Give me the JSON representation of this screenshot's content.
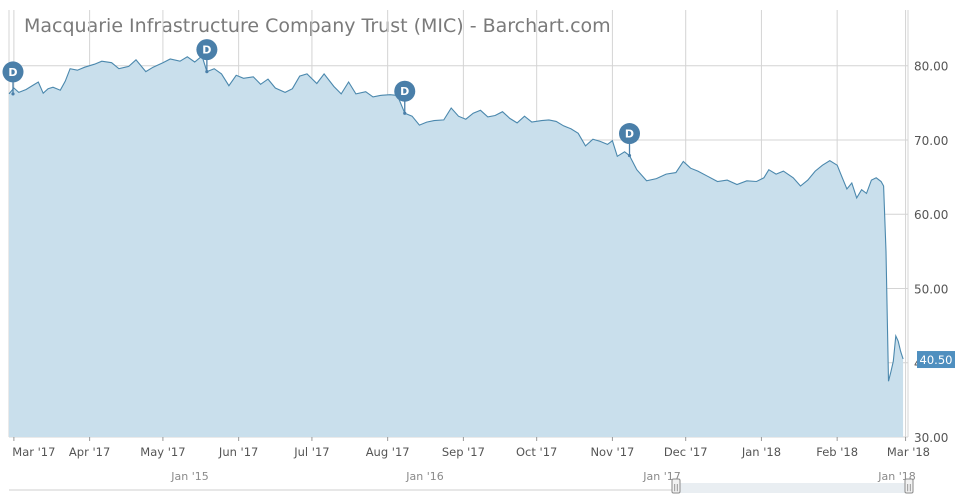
{
  "colors": {
    "area_fill": "#c9dfec",
    "line": "#4b88ad",
    "grid": "#d4d4d4",
    "axis_text": "#555555",
    "navigator_text": "#8a8a8a",
    "marker": "#4a7fa9",
    "price_badge": "#4f8fbf"
  },
  "chart_data": {
    "type": "area",
    "title": "Macquarie Infrastructure Company Trust (MIC) - Barchart.com",
    "y_ticks": [
      "80.00",
      "70.00",
      "60.00",
      "50.00",
      "40.00",
      "30.00"
    ],
    "y_tick_values": [
      80,
      70,
      60,
      50,
      40,
      30
    ],
    "ylim": [
      30,
      87.5
    ],
    "x_ticks": [
      "Mar '17",
      "Apr '17",
      "May '17",
      "Jun '17",
      "Jul '17",
      "Aug '17",
      "Sep '17",
      "Oct '17",
      "Nov '17",
      "Dec '17",
      "Jan '18",
      "Feb '18",
      "Mar '18"
    ],
    "x_tick_dates": [
      "2017-03-01",
      "2017-04-01",
      "2017-05-01",
      "2017-06-01",
      "2017-07-01",
      "2017-08-01",
      "2017-09-01",
      "2017-10-01",
      "2017-11-01",
      "2017-12-01",
      "2018-01-01",
      "2018-02-01",
      "2018-03-01"
    ],
    "xlim": [
      "2017-02-27",
      "2018-03-02"
    ],
    "last_price_label": "40.50",
    "last_price": 40.5,
    "grid": true,
    "series": [
      {
        "points": [
          [
            "2017-02-27",
            76.2
          ],
          [
            "2017-03-01",
            77.0
          ],
          [
            "2017-03-03",
            76.4
          ],
          [
            "2017-03-06",
            76.8
          ],
          [
            "2017-03-09",
            77.4
          ],
          [
            "2017-03-11",
            77.8
          ],
          [
            "2017-03-13",
            76.3
          ],
          [
            "2017-03-15",
            76.9
          ],
          [
            "2017-03-17",
            77.1
          ],
          [
            "2017-03-20",
            76.7
          ],
          [
            "2017-03-22",
            77.9
          ],
          [
            "2017-03-24",
            79.6
          ],
          [
            "2017-03-27",
            79.4
          ],
          [
            "2017-03-30",
            79.8
          ],
          [
            "2017-04-03",
            80.2
          ],
          [
            "2017-04-06",
            80.6
          ],
          [
            "2017-04-10",
            80.4
          ],
          [
            "2017-04-13",
            79.6
          ],
          [
            "2017-04-17",
            79.9
          ],
          [
            "2017-04-20",
            80.8
          ],
          [
            "2017-04-24",
            79.2
          ],
          [
            "2017-04-27",
            79.8
          ],
          [
            "2017-05-01",
            80.4
          ],
          [
            "2017-05-04",
            80.9
          ],
          [
            "2017-05-08",
            80.6
          ],
          [
            "2017-05-11",
            81.2
          ],
          [
            "2017-05-14",
            80.5
          ],
          [
            "2017-05-17",
            81.3
          ],
          [
            "2017-05-19",
            79.2
          ],
          [
            "2017-05-22",
            79.6
          ],
          [
            "2017-05-25",
            78.9
          ],
          [
            "2017-05-28",
            77.3
          ],
          [
            "2017-05-31",
            78.7
          ],
          [
            "2017-06-03",
            78.3
          ],
          [
            "2017-06-07",
            78.5
          ],
          [
            "2017-06-10",
            77.5
          ],
          [
            "2017-06-13",
            78.2
          ],
          [
            "2017-06-16",
            77.0
          ],
          [
            "2017-06-20",
            76.4
          ],
          [
            "2017-06-23",
            76.9
          ],
          [
            "2017-06-26",
            78.6
          ],
          [
            "2017-06-29",
            78.9
          ],
          [
            "2017-07-03",
            77.6
          ],
          [
            "2017-07-06",
            78.9
          ],
          [
            "2017-07-10",
            77.2
          ],
          [
            "2017-07-13",
            76.2
          ],
          [
            "2017-07-16",
            77.8
          ],
          [
            "2017-07-19",
            76.2
          ],
          [
            "2017-07-23",
            76.5
          ],
          [
            "2017-07-26",
            75.8
          ],
          [
            "2017-07-29",
            76.0
          ],
          [
            "2017-08-02",
            76.1
          ],
          [
            "2017-08-05",
            76.0
          ],
          [
            "2017-08-08",
            73.6
          ],
          [
            "2017-08-11",
            73.2
          ],
          [
            "2017-08-14",
            72.0
          ],
          [
            "2017-08-17",
            72.4
          ],
          [
            "2017-08-20",
            72.6
          ],
          [
            "2017-08-24",
            72.7
          ],
          [
            "2017-08-27",
            74.3
          ],
          [
            "2017-08-30",
            73.2
          ],
          [
            "2017-09-02",
            72.8
          ],
          [
            "2017-09-05",
            73.6
          ],
          [
            "2017-09-08",
            74.0
          ],
          [
            "2017-09-11",
            73.1
          ],
          [
            "2017-09-14",
            73.3
          ],
          [
            "2017-09-17",
            73.8
          ],
          [
            "2017-09-20",
            72.9
          ],
          [
            "2017-09-23",
            72.3
          ],
          [
            "2017-09-26",
            73.2
          ],
          [
            "2017-09-29",
            72.4
          ],
          [
            "2017-10-03",
            72.6
          ],
          [
            "2017-10-06",
            72.7
          ],
          [
            "2017-10-09",
            72.5
          ],
          [
            "2017-10-12",
            71.9
          ],
          [
            "2017-10-15",
            71.5
          ],
          [
            "2017-10-18",
            70.9
          ],
          [
            "2017-10-21",
            69.2
          ],
          [
            "2017-10-24",
            70.1
          ],
          [
            "2017-10-27",
            69.8
          ],
          [
            "2017-10-30",
            69.4
          ],
          [
            "2017-11-01",
            69.9
          ],
          [
            "2017-11-03",
            67.8
          ],
          [
            "2017-11-06",
            68.4
          ],
          [
            "2017-11-08",
            67.9
          ],
          [
            "2017-11-11",
            66.0
          ],
          [
            "2017-11-15",
            64.5
          ],
          [
            "2017-11-19",
            64.8
          ],
          [
            "2017-11-23",
            65.4
          ],
          [
            "2017-11-27",
            65.6
          ],
          [
            "2017-11-30",
            67.1
          ],
          [
            "2017-12-03",
            66.2
          ],
          [
            "2017-12-06",
            65.8
          ],
          [
            "2017-12-10",
            65.1
          ],
          [
            "2017-12-14",
            64.4
          ],
          [
            "2017-12-18",
            64.6
          ],
          [
            "2017-12-22",
            64.0
          ],
          [
            "2017-12-26",
            64.5
          ],
          [
            "2017-12-30",
            64.4
          ],
          [
            "2018-01-02",
            64.9
          ],
          [
            "2018-01-04",
            66.0
          ],
          [
            "2018-01-07",
            65.4
          ],
          [
            "2018-01-10",
            65.8
          ],
          [
            "2018-01-14",
            64.9
          ],
          [
            "2018-01-17",
            63.8
          ],
          [
            "2018-01-20",
            64.6
          ],
          [
            "2018-01-23",
            65.8
          ],
          [
            "2018-01-26",
            66.6
          ],
          [
            "2018-01-29",
            67.2
          ],
          [
            "2018-02-01",
            66.6
          ],
          [
            "2018-02-03",
            65.0
          ],
          [
            "2018-02-05",
            63.4
          ],
          [
            "2018-02-07",
            64.2
          ],
          [
            "2018-02-09",
            62.2
          ],
          [
            "2018-02-11",
            63.3
          ],
          [
            "2018-02-13",
            62.8
          ],
          [
            "2018-02-15",
            64.6
          ],
          [
            "2018-02-17",
            64.9
          ],
          [
            "2018-02-19",
            64.4
          ],
          [
            "2018-02-20",
            63.8
          ],
          [
            "2018-02-21",
            55.0
          ],
          [
            "2018-02-22",
            37.5
          ],
          [
            "2018-02-23",
            38.8
          ],
          [
            "2018-02-24",
            40.2
          ],
          [
            "2018-02-25",
            43.6
          ],
          [
            "2018-02-26",
            42.9
          ],
          [
            "2018-02-27",
            41.5
          ],
          [
            "2018-02-28",
            40.5
          ]
        ]
      }
    ],
    "dividend_markers": [
      {
        "label": "D",
        "date": "2017-02-27",
        "value": 76.2
      },
      {
        "label": "D",
        "date": "2017-05-19",
        "value": 79.2
      },
      {
        "label": "D",
        "date": "2017-08-08",
        "value": 73.6
      },
      {
        "label": "D",
        "date": "2017-11-08",
        "value": 67.9
      }
    ]
  },
  "navigator": {
    "labels": [
      "Jan '15",
      "Jan '16",
      "Jan '17",
      "Jan '18"
    ],
    "handle_left": "||",
    "handle_right": "||"
  }
}
